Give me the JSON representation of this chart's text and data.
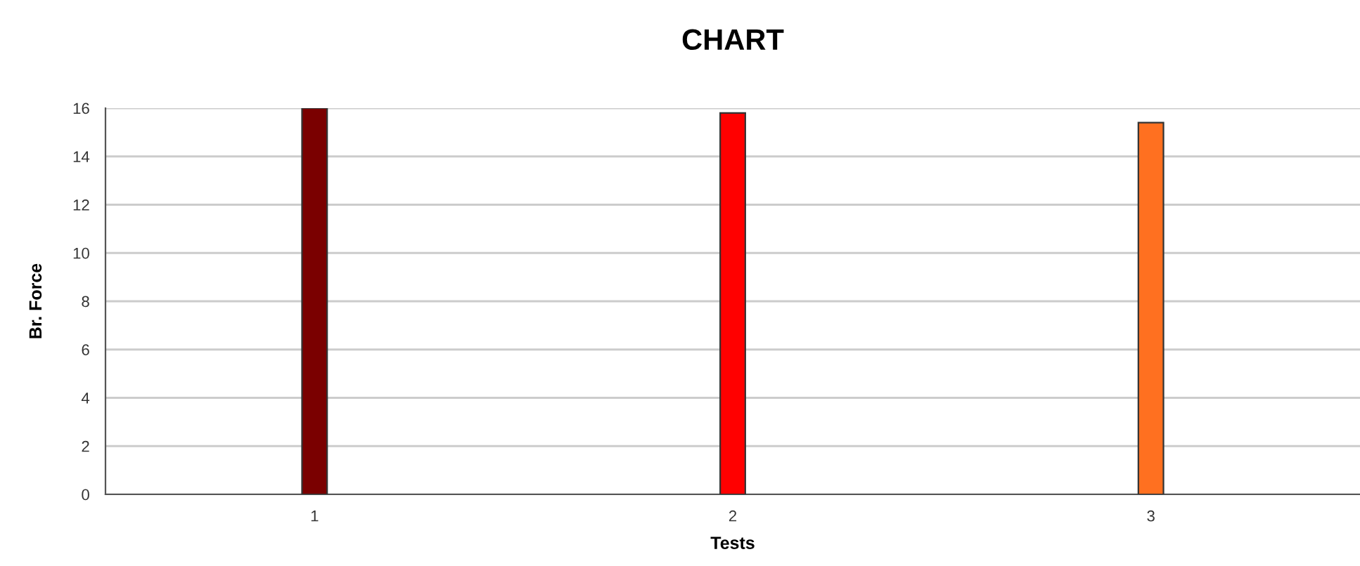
{
  "chart_data": {
    "type": "bar",
    "title": "CHART",
    "xlabel": "Tests",
    "ylabel": "Br. Force",
    "categories": [
      "1",
      "2",
      "3"
    ],
    "values": [
      16,
      15.8,
      15.4
    ],
    "colors": [
      "#7a0000",
      "#ff0000",
      "#ff7020"
    ],
    "ylim": [
      0,
      16
    ],
    "yticks": [
      0,
      2,
      4,
      6,
      8,
      10,
      12,
      14,
      16
    ],
    "grid": "y",
    "legend": false
  }
}
